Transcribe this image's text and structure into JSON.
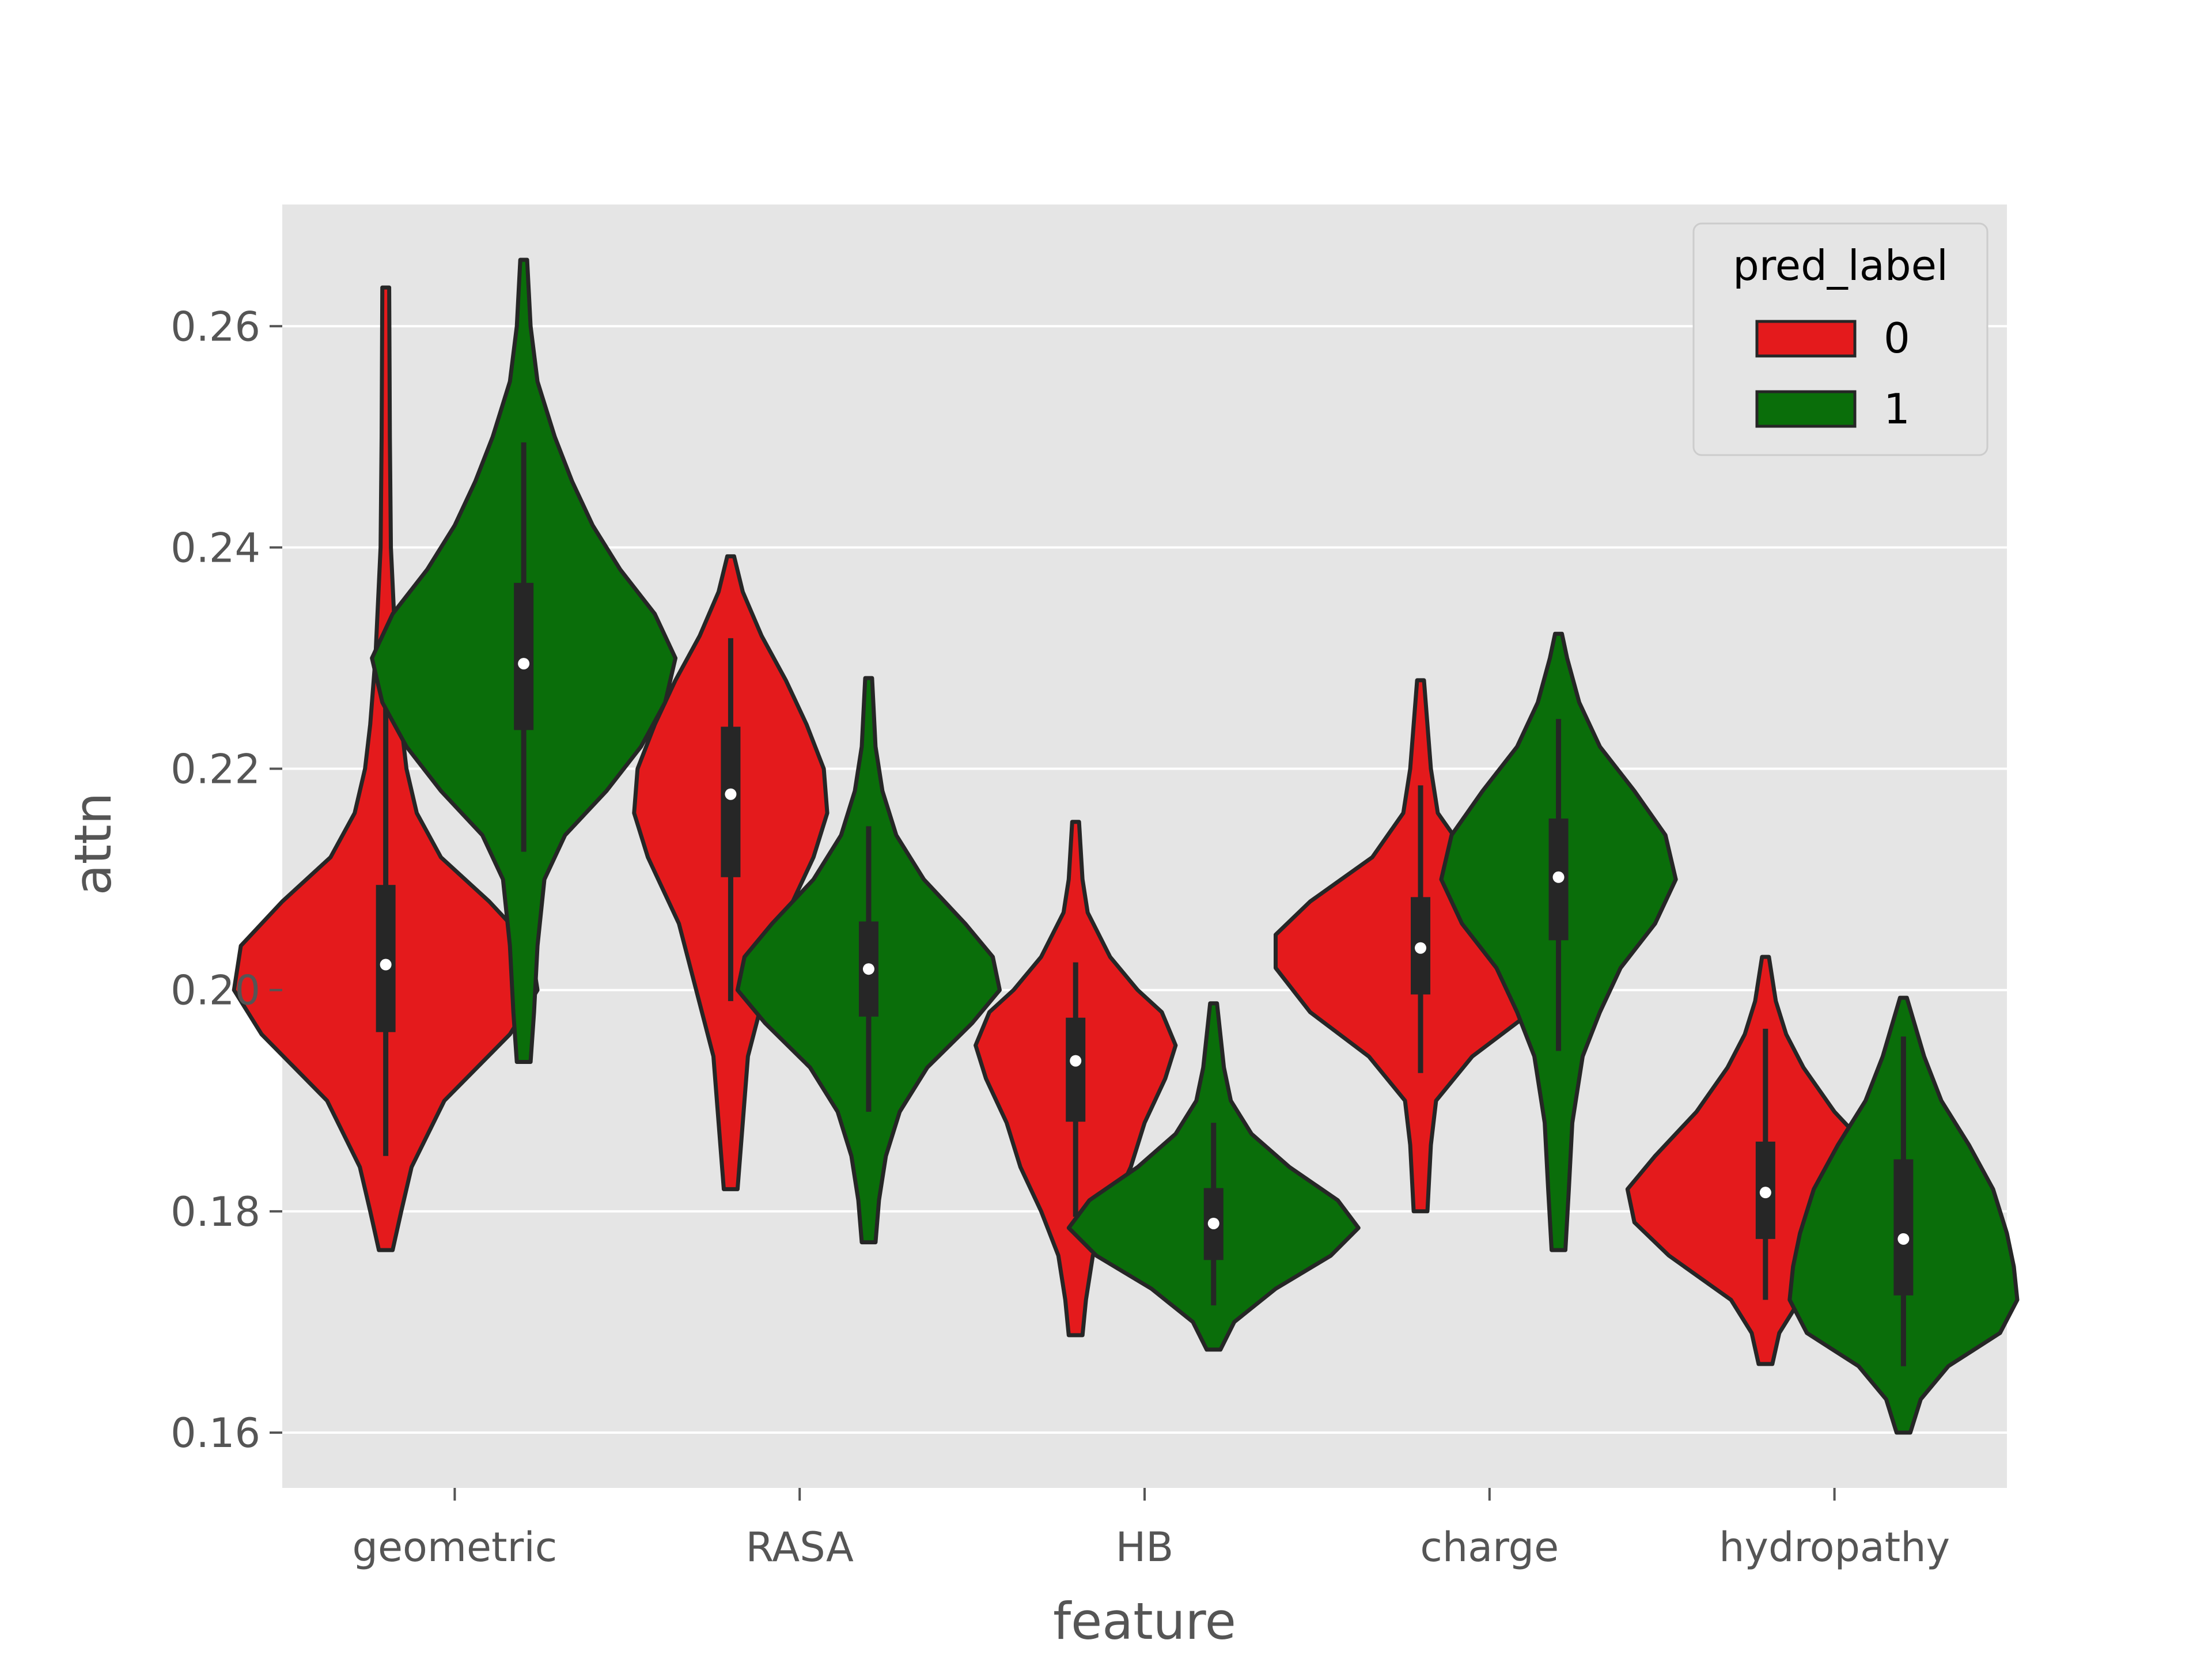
{
  "chart_data": {
    "type": "violin",
    "title": "",
    "xlabel": "feature",
    "ylabel": "attn",
    "categories": [
      "geometric",
      "RASA",
      "HB",
      "charge",
      "hydropathy"
    ],
    "ylim": [
      0.155,
      0.271
    ],
    "yticks": [
      "0.16",
      "0.18",
      "0.20",
      "0.22",
      "0.24",
      "0.26"
    ],
    "grid": true,
    "legend": {
      "title": "pred_label",
      "placement": "top-right",
      "entries": [
        "0",
        "1"
      ]
    },
    "colors": {
      "0": "#e41a1c",
      "1": "#0a6e0a",
      "outline": "#262626",
      "background": "#e5e5e5",
      "grid": "#ffffff"
    },
    "series": [
      {
        "name": "0",
        "violins": [
          {
            "min": 0.1765,
            "max": 0.2635,
            "q1": 0.1962,
            "median": 0.2023,
            "q3": 0.2095,
            "whisker_low": 0.185,
            "whisker_high": 0.2265,
            "profile": [
              [
                0.1765,
                0.02
              ],
              [
                0.18,
                0.045
              ],
              [
                0.184,
                0.075
              ],
              [
                0.19,
                0.17
              ],
              [
                0.196,
                0.36
              ],
              [
                0.2,
                0.44
              ],
              [
                0.204,
                0.42
              ],
              [
                0.208,
                0.3
              ],
              [
                0.212,
                0.16
              ],
              [
                0.216,
                0.09
              ],
              [
                0.22,
                0.06
              ],
              [
                0.224,
                0.045
              ],
              [
                0.23,
                0.03
              ],
              [
                0.24,
                0.015
              ],
              [
                0.25,
                0.012
              ],
              [
                0.2635,
                0.01
              ]
            ]
          },
          {
            "min": 0.182,
            "max": 0.2392,
            "q1": 0.2102,
            "median": 0.2177,
            "q3": 0.2238,
            "whisker_low": 0.199,
            "whisker_high": 0.2318,
            "profile": [
              [
                0.182,
                0.02
              ],
              [
                0.188,
                0.035
              ],
              [
                0.194,
                0.05
              ],
              [
                0.2,
                0.1
              ],
              [
                0.206,
                0.15
              ],
              [
                0.212,
                0.24
              ],
              [
                0.216,
                0.28
              ],
              [
                0.22,
                0.27
              ],
              [
                0.224,
                0.22
              ],
              [
                0.228,
                0.16
              ],
              [
                0.232,
                0.09
              ],
              [
                0.236,
                0.035
              ],
              [
                0.2392,
                0.01
              ]
            ]
          },
          {
            "min": 0.1688,
            "max": 0.2152,
            "q1": 0.1881,
            "median": 0.1936,
            "q3": 0.1975,
            "whisker_low": 0.1795,
            "whisker_high": 0.2025,
            "profile": [
              [
                0.1688,
                0.02
              ],
              [
                0.172,
                0.03
              ],
              [
                0.176,
                0.05
              ],
              [
                0.18,
                0.1
              ],
              [
                0.184,
                0.16
              ],
              [
                0.188,
                0.2
              ],
              [
                0.192,
                0.26
              ],
              [
                0.195,
                0.29
              ],
              [
                0.198,
                0.25
              ],
              [
                0.2,
                0.18
              ],
              [
                0.203,
                0.1
              ],
              [
                0.207,
                0.035
              ],
              [
                0.21,
                0.02
              ],
              [
                0.2152,
                0.01
              ]
            ]
          },
          {
            "min": 0.18,
            "max": 0.228,
            "q1": 0.1996,
            "median": 0.2038,
            "q3": 0.2084,
            "whisker_low": 0.1925,
            "whisker_high": 0.2185,
            "profile": [
              [
                0.18,
                0.02
              ],
              [
                0.186,
                0.03
              ],
              [
                0.19,
                0.045
              ],
              [
                0.194,
                0.15
              ],
              [
                0.198,
                0.32
              ],
              [
                0.202,
                0.42
              ],
              [
                0.205,
                0.42
              ],
              [
                0.208,
                0.32
              ],
              [
                0.212,
                0.14
              ],
              [
                0.216,
                0.05
              ],
              [
                0.22,
                0.03
              ],
              [
                0.224,
                0.02
              ],
              [
                0.228,
                0.01
              ]
            ]
          },
          {
            "min": 0.1662,
            "max": 0.203,
            "q1": 0.1775,
            "median": 0.1817,
            "q3": 0.1863,
            "whisker_low": 0.172,
            "whisker_high": 0.1965,
            "profile": [
              [
                0.1662,
                0.02
              ],
              [
                0.169,
                0.04
              ],
              [
                0.172,
                0.1
              ],
              [
                0.176,
                0.28
              ],
              [
                0.179,
                0.38
              ],
              [
                0.182,
                0.4
              ],
              [
                0.185,
                0.32
              ],
              [
                0.189,
                0.2
              ],
              [
                0.193,
                0.11
              ],
              [
                0.196,
                0.06
              ],
              [
                0.199,
                0.03
              ],
              [
                0.203,
                0.01
              ]
            ]
          }
        ]
      },
      {
        "name": "1",
        "violins": [
          {
            "min": 0.1935,
            "max": 0.266,
            "q1": 0.2235,
            "median": 0.2295,
            "q3": 0.2368,
            "whisker_low": 0.2125,
            "whisker_high": 0.2495,
            "profile": [
              [
                0.1935,
                0.02
              ],
              [
                0.198,
                0.03
              ],
              [
                0.204,
                0.04
              ],
              [
                0.21,
                0.06
              ],
              [
                0.214,
                0.12
              ],
              [
                0.218,
                0.24
              ],
              [
                0.222,
                0.34
              ],
              [
                0.226,
                0.41
              ],
              [
                0.23,
                0.44
              ],
              [
                0.234,
                0.38
              ],
              [
                0.238,
                0.28
              ],
              [
                0.242,
                0.2
              ],
              [
                0.246,
                0.14
              ],
              [
                0.25,
                0.09
              ],
              [
                0.255,
                0.04
              ],
              [
                0.26,
                0.02
              ],
              [
                0.266,
                0.01
              ]
            ]
          },
          {
            "min": 0.1772,
            "max": 0.2282,
            "q1": 0.1976,
            "median": 0.2019,
            "q3": 0.2062,
            "whisker_low": 0.189,
            "whisker_high": 0.2148,
            "profile": [
              [
                0.1772,
                0.02
              ],
              [
                0.181,
                0.03
              ],
              [
                0.185,
                0.05
              ],
              [
                0.189,
                0.09
              ],
              [
                0.193,
                0.17
              ],
              [
                0.197,
                0.3
              ],
              [
                0.2,
                0.38
              ],
              [
                0.203,
                0.36
              ],
              [
                0.206,
                0.28
              ],
              [
                0.21,
                0.16
              ],
              [
                0.214,
                0.08
              ],
              [
                0.218,
                0.04
              ],
              [
                0.222,
                0.02
              ],
              [
                0.2282,
                0.01
              ]
            ]
          },
          {
            "min": 0.1675,
            "max": 0.1988,
            "q1": 0.1756,
            "median": 0.1789,
            "q3": 0.1821,
            "whisker_low": 0.1715,
            "whisker_high": 0.188,
            "profile": [
              [
                0.1675,
                0.02
              ],
              [
                0.17,
                0.06
              ],
              [
                0.173,
                0.18
              ],
              [
                0.176,
                0.34
              ],
              [
                0.1785,
                0.42
              ],
              [
                0.181,
                0.36
              ],
              [
                0.184,
                0.22
              ],
              [
                0.187,
                0.11
              ],
              [
                0.19,
                0.05
              ],
              [
                0.193,
                0.03
              ],
              [
                0.1988,
                0.01
              ]
            ]
          },
          {
            "min": 0.1765,
            "max": 0.2322,
            "q1": 0.2045,
            "median": 0.2102,
            "q3": 0.2155,
            "whisker_low": 0.1945,
            "whisker_high": 0.2245,
            "profile": [
              [
                0.1765,
                0.02
              ],
              [
                0.182,
                0.03
              ],
              [
                0.188,
                0.04
              ],
              [
                0.194,
                0.07
              ],
              [
                0.198,
                0.12
              ],
              [
                0.202,
                0.18
              ],
              [
                0.206,
                0.28
              ],
              [
                0.21,
                0.34
              ],
              [
                0.214,
                0.31
              ],
              [
                0.218,
                0.22
              ],
              [
                0.222,
                0.12
              ],
              [
                0.226,
                0.06
              ],
              [
                0.23,
                0.025
              ],
              [
                0.2322,
                0.01
              ]
            ]
          },
          {
            "min": 0.16,
            "max": 0.1993,
            "q1": 0.1724,
            "median": 0.1775,
            "q3": 0.1847,
            "whisker_low": 0.166,
            "whisker_high": 0.1958,
            "profile": [
              [
                0.16,
                0.02
              ],
              [
                0.163,
                0.05
              ],
              [
                0.166,
                0.13
              ],
              [
                0.169,
                0.28
              ],
              [
                0.172,
                0.33
              ],
              [
                0.175,
                0.32
              ],
              [
                0.178,
                0.3
              ],
              [
                0.182,
                0.26
              ],
              [
                0.186,
                0.19
              ],
              [
                0.19,
                0.11
              ],
              [
                0.194,
                0.06
              ],
              [
                0.1993,
                0.01
              ]
            ]
          }
        ]
      }
    ]
  }
}
